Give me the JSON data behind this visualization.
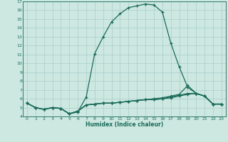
{
  "xlabel": "Humidex (Indice chaleur)",
  "bg_color": "#cce8e0",
  "grid_color": "#aacccc",
  "line_color": "#1a6b5a",
  "xlim": [
    -0.5,
    23.5
  ],
  "ylim": [
    4,
    17
  ],
  "xticks": [
    0,
    1,
    2,
    3,
    4,
    5,
    6,
    7,
    8,
    9,
    10,
    11,
    12,
    13,
    14,
    15,
    16,
    17,
    18,
    19,
    20,
    21,
    22,
    23
  ],
  "yticks": [
    4,
    5,
    6,
    7,
    8,
    9,
    10,
    11,
    12,
    13,
    14,
    15,
    16,
    17
  ],
  "curve1_x": [
    0,
    1,
    2,
    3,
    4,
    5,
    6,
    7,
    8,
    9,
    10,
    11,
    12,
    13,
    14,
    15,
    16,
    17,
    18,
    19,
    20,
    21,
    22,
    23
  ],
  "curve1_y": [
    5.5,
    5.0,
    4.8,
    5.0,
    4.9,
    4.3,
    4.5,
    6.2,
    11.1,
    13.0,
    14.7,
    15.6,
    16.3,
    16.5,
    16.7,
    16.6,
    15.8,
    12.3,
    9.6,
    7.3,
    6.6,
    6.3,
    5.4,
    5.4
  ],
  "curve2_x": [
    0,
    1,
    2,
    3,
    4,
    5,
    6,
    7,
    8,
    9,
    10,
    11,
    12,
    13,
    14,
    15,
    16,
    17,
    18,
    19,
    20,
    21,
    22,
    23
  ],
  "curve2_y": [
    5.5,
    5.0,
    4.8,
    5.0,
    4.9,
    4.3,
    4.6,
    5.3,
    5.4,
    5.5,
    5.5,
    5.6,
    5.7,
    5.8,
    5.9,
    6.0,
    6.1,
    6.3,
    6.5,
    7.5,
    6.6,
    6.3,
    5.4,
    5.4
  ],
  "curve3_x": [
    0,
    1,
    2,
    3,
    4,
    5,
    6,
    7,
    8,
    9,
    10,
    11,
    12,
    13,
    14,
    15,
    16,
    17,
    18,
    19,
    20,
    21,
    22,
    23
  ],
  "curve3_y": [
    5.5,
    5.0,
    4.8,
    5.0,
    4.9,
    4.3,
    4.6,
    5.3,
    5.4,
    5.5,
    5.5,
    5.6,
    5.7,
    5.8,
    5.9,
    5.9,
    6.0,
    6.2,
    6.4,
    6.6,
    6.6,
    6.3,
    5.4,
    5.4
  ],
  "curve4_x": [
    0,
    1,
    2,
    3,
    4,
    5,
    6,
    7,
    8,
    9,
    10,
    11,
    12,
    13,
    14,
    15,
    16,
    17,
    18,
    19,
    20,
    21,
    22,
    23
  ],
  "curve4_y": [
    5.5,
    5.0,
    4.8,
    5.0,
    4.9,
    4.3,
    4.6,
    5.3,
    5.4,
    5.5,
    5.5,
    5.6,
    5.7,
    5.8,
    5.9,
    5.9,
    6.0,
    6.1,
    6.3,
    6.5,
    6.6,
    6.3,
    5.4,
    5.4
  ]
}
